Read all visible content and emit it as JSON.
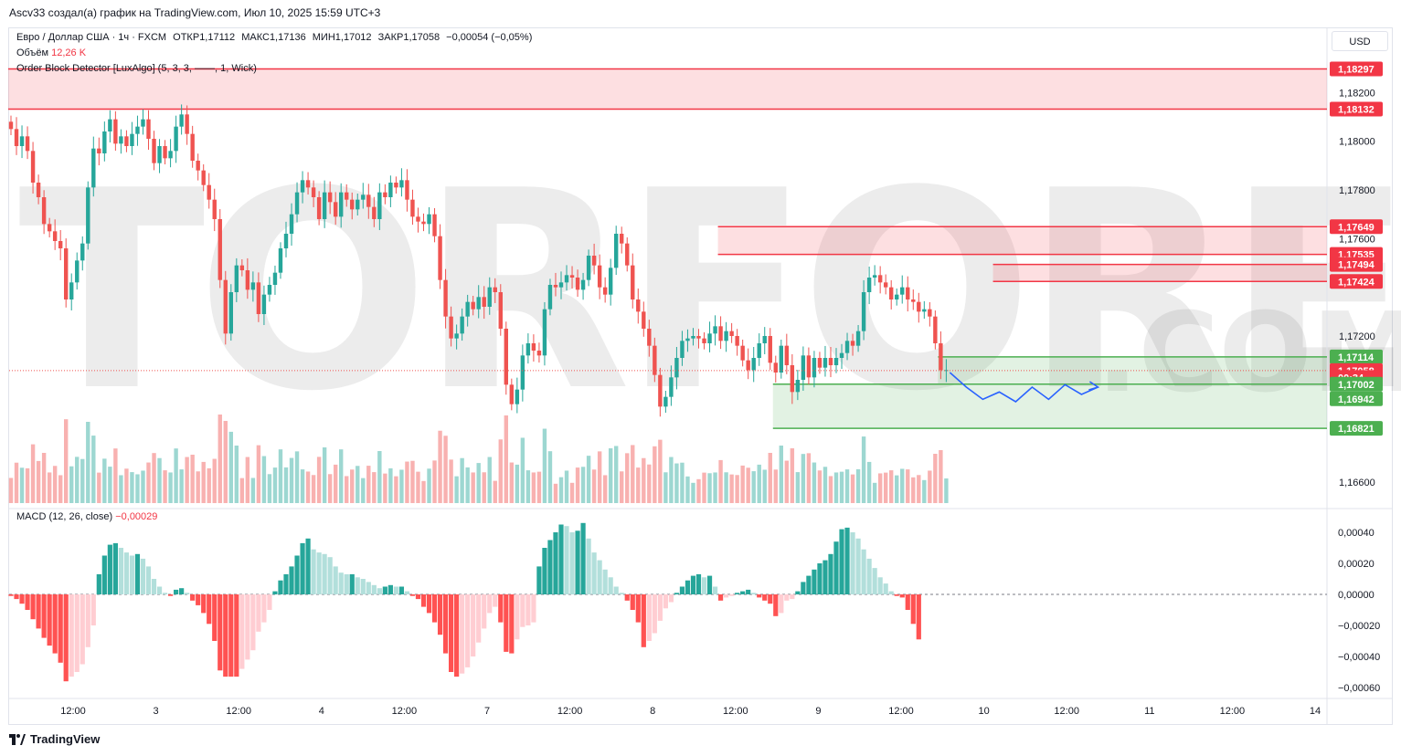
{
  "attribution": "Ascv33 создал(а) график на TradingView.com, Июл 10, 2025 15:59 UTC+3",
  "legend": {
    "symbol": "Евро / Доллар США · 1ч · FXCM",
    "open_label": "ОТКР",
    "open": "1,17112",
    "high_label": "МАКС",
    "high": "1,17136",
    "low_label": "МИН",
    "low": "1,17012",
    "close_label": "ЗАКР",
    "close": "1,17058",
    "change": "−0,00054 (−0,05%)",
    "volume_label": "Объём",
    "volume": "12,26 K",
    "indicator": "Order Block Detector [LuxAlgo] (5, 3, 3, ——, 1, Wick)",
    "macd_label": "MACD (12, 26, close)",
    "macd_value": "−0,00029"
  },
  "currency": "USD",
  "watermark": "TORFOREX",
  "watermark_com": ".COM",
  "footer_brand": "TradingView",
  "colors": {
    "up": "#26a69a",
    "down": "#ef5350",
    "bear_zone": "#f23645",
    "bull_zone": "#4caf50",
    "forecast": "#2962ff"
  },
  "chart_data": {
    "type": "candlestick",
    "price_axis": {
      "ticks": [
        "1,18200",
        "1,18000",
        "1,17800",
        "1,17600",
        "1,17200",
        "1,16600"
      ],
      "tick_values": [
        1.182,
        1.18,
        1.178,
        1.176,
        1.172,
        1.166
      ],
      "range": [
        1.1651,
        1.1846
      ]
    },
    "time_axis": {
      "labels": [
        "12:00",
        "3",
        "12:00",
        "4",
        "12:00",
        "7",
        "12:00",
        "8",
        "12:00",
        "9",
        "12:00",
        "10",
        "12:00",
        "11",
        "12:00",
        "14"
      ]
    },
    "price_labels": [
      {
        "text": "1,18297",
        "value": 1.18297,
        "kind": "bear"
      },
      {
        "text": "1,18132",
        "value": 1.18132,
        "kind": "bear"
      },
      {
        "text": "1,17649",
        "value": 1.17649,
        "kind": "bear"
      },
      {
        "text": "1,17535",
        "value": 1.17535,
        "kind": "bear"
      },
      {
        "text": "1,17494",
        "value": 1.17494,
        "kind": "bear"
      },
      {
        "text": "1,17424",
        "value": 1.17424,
        "kind": "bear"
      },
      {
        "text": "1,17114",
        "value": 1.17114,
        "kind": "bull"
      },
      {
        "text": "1,17058",
        "value": 1.17058,
        "kind": "last"
      },
      {
        "text": "00:34",
        "value": 1.1703,
        "kind": "timer"
      },
      {
        "text": "1,17002",
        "value": 1.17002,
        "kind": "bull"
      },
      {
        "text": "1,16942",
        "value": 1.16942,
        "kind": "bull"
      },
      {
        "text": "1,16821",
        "value": 1.16821,
        "kind": "bull"
      }
    ],
    "order_blocks": [
      {
        "kind": "bear",
        "top": 1.18297,
        "bottom": 1.18132,
        "x_start": 0
      },
      {
        "kind": "bear",
        "top": 1.17649,
        "bottom": 1.17535,
        "x_start": 129
      },
      {
        "kind": "bear",
        "top": 1.17494,
        "bottom": 1.17424,
        "x_start": 179
      },
      {
        "kind": "bull",
        "top": 1.17114,
        "bottom": 1.17002,
        "x_start": 169
      },
      {
        "kind": "bull",
        "top": 1.17002,
        "bottom": 1.16821,
        "x_start": 139
      }
    ],
    "closes": [
      1.1805,
      1.1798,
      1.1802,
      1.1796,
      1.1783,
      1.1777,
      1.1766,
      1.1763,
      1.1759,
      1.1756,
      1.1735,
      1.1742,
      1.1751,
      1.1758,
      1.1781,
      1.1797,
      1.1795,
      1.1804,
      1.1809,
      1.1799,
      1.1802,
      1.1798,
      1.1803,
      1.1806,
      1.1809,
      1.1801,
      1.1791,
      1.1798,
      1.1793,
      1.1796,
      1.1806,
      1.1811,
      1.1803,
      1.1792,
      1.1788,
      1.1782,
      1.1776,
      1.1768,
      1.1743,
      1.1721,
      1.1738,
      1.1749,
      1.1747,
      1.1739,
      1.1742,
      1.1729,
      1.1737,
      1.1741,
      1.1746,
      1.1756,
      1.1762,
      1.177,
      1.1779,
      1.1784,
      1.1781,
      1.1777,
      1.1768,
      1.1779,
      1.1775,
      1.1769,
      1.1779,
      1.1776,
      1.1772,
      1.1776,
      1.1778,
      1.1773,
      1.1768,
      1.1779,
      1.1777,
      1.1783,
      1.1781,
      1.1784,
      1.1776,
      1.1769,
      1.1767,
      1.1766,
      1.177,
      1.1761,
      1.1743,
      1.1728,
      1.1719,
      1.1721,
      1.1728,
      1.1734,
      1.1731,
      1.1736,
      1.1732,
      1.174,
      1.1738,
      1.1723,
      1.17,
      1.1692,
      1.1698,
      1.1712,
      1.1717,
      1.1714,
      1.1712,
      1.1731,
      1.1741,
      1.174,
      1.1742,
      1.1745,
      1.1744,
      1.1739,
      1.1743,
      1.1753,
      1.1749,
      1.174,
      1.1737,
      1.1748,
      1.1762,
      1.1758,
      1.1749,
      1.1735,
      1.173,
      1.1723,
      1.1716,
      1.1704,
      1.1691,
      1.1695,
      1.1703,
      1.1711,
      1.1718,
      1.1719,
      1.172,
      1.1719,
      1.1717,
      1.1721,
      1.1724,
      1.1718,
      1.1722,
      1.172,
      1.1716,
      1.171,
      1.1706,
      1.1711,
      1.1717,
      1.172,
      1.1709,
      1.1705,
      1.1716,
      1.1708,
      1.1697,
      1.1702,
      1.1712,
      1.1703,
      1.1711,
      1.1707,
      1.1711,
      1.1708,
      1.1711,
      1.1713,
      1.1718,
      1.1716,
      1.1722,
      1.1738,
      1.1744,
      1.1745,
      1.1742,
      1.174,
      1.1735,
      1.1737,
      1.174,
      1.1735,
      1.1734,
      1.173,
      1.1731,
      1.1728,
      1.1717,
      1.1706,
      1.1706
    ],
    "volume_range": [
      0,
      1
    ],
    "macd_axis": {
      "ticks": [
        "0,00040",
        "0,00020",
        "0,00000",
        "−0,00020",
        "−0,00040",
        "−0,00060"
      ],
      "tick_values": [
        0.0004,
        0.0002,
        0,
        -0.0002,
        -0.0004,
        -0.0006
      ]
    },
    "macd_histogram": [
      -1e-05,
      -3e-05,
      -6e-05,
      -0.0001,
      -0.00016,
      -0.00022,
      -0.00028,
      -0.00033,
      -0.00038,
      -0.00044,
      -0.00056,
      -0.00053,
      -0.0005,
      -0.00045,
      -0.00034,
      -0.0002,
      0.00013,
      0.00025,
      0.00032,
      0.00033,
      0.0003,
      0.00027,
      0.00025,
      0.00026,
      0.00023,
      0.00018,
      0.0001,
      5e-05,
      1e-05,
      -1e-05,
      3e-05,
      4e-05,
      1e-05,
      -4e-05,
      -7e-05,
      -0.00012,
      -0.00019,
      -0.0003,
      -0.00049,
      -0.00053,
      -0.00053,
      -0.00053,
      -0.00048,
      -0.00042,
      -0.00036,
      -0.00024,
      -0.00018,
      -0.0001,
      2e-05,
      9e-05,
      0.00013,
      0.00018,
      0.00025,
      0.00033,
      0.00036,
      0.00029,
      0.00027,
      0.00026,
      0.00024,
      0.00018,
      0.00014,
      0.00013,
      0.00013,
      0.00011,
      0.0001,
      8e-05,
      6e-05,
      4e-05,
      5e-05,
      6e-05,
      5e-05,
      5e-05,
      2e-05,
      -1e-05,
      -3e-05,
      -8e-05,
      -0.00012,
      -0.00018,
      -0.00026,
      -0.00038,
      -0.0005,
      -0.00053,
      -0.00051,
      -0.00047,
      -0.0004,
      -0.00031,
      -0.00022,
      -0.00012,
      -8e-05,
      -0.00018,
      -0.00037,
      -0.00038,
      -0.00029,
      -0.00021,
      -0.0002,
      -0.00018,
      0.00018,
      0.0003,
      0.00035,
      0.0004,
      0.00045,
      0.00044,
      0.0004,
      0.00041,
      0.00046,
      0.00036,
      0.00027,
      0.00022,
      0.00016,
      0.00011,
      5e-05,
      1e-05,
      -4e-05,
      -0.0001,
      -0.00018,
      -0.00034,
      -0.0003,
      -0.00025,
      -0.00017,
      -9e-05,
      -5e-05,
      1e-05,
      5e-05,
      9e-05,
      0.00012,
      0.00013,
      0.00011,
      0.00012,
      5e-05,
      -4e-05,
      -2e-05,
      -1e-05,
      1e-05,
      2e-05,
      3e-05,
      1e-05,
      -2e-05,
      -4e-05,
      -6e-05,
      -0.00014,
      -0.00012,
      -4e-05,
      -3e-05,
      2e-05,
      8e-05,
      0.00012,
      0.00016,
      0.0002,
      0.00022,
      0.00026,
      0.00034,
      0.00042,
      0.00043,
      0.0004,
      0.00036,
      0.00029,
      0.00023,
      0.00017,
      0.00011,
      7e-05,
      2e-05,
      -1e-05,
      -2e-05,
      -0.0001,
      -0.00019,
      -0.00029
    ],
    "forecast_path": [
      1.1705,
      1.1699,
      1.1694,
      1.1697,
      1.1693,
      1.1699,
      1.1694,
      1.17,
      1.1696,
      1.1699
    ],
    "last_price": 1.17058
  }
}
